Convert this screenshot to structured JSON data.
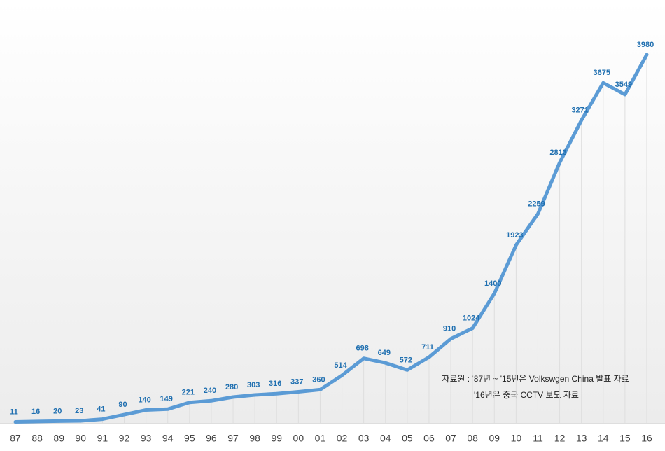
{
  "chart_data": {
    "type": "line",
    "categories": [
      "87",
      "88",
      "89",
      "90",
      "91",
      "92",
      "93",
      "94",
      "95",
      "96",
      "97",
      "98",
      "99",
      "00",
      "01",
      "02",
      "03",
      "04",
      "05",
      "06",
      "07",
      "08",
      "09",
      "10",
      "11",
      "12",
      "13",
      "14",
      "15",
      "16"
    ],
    "values": [
      11,
      16,
      20,
      23,
      41,
      90,
      140,
      149,
      221,
      240,
      280,
      303,
      316,
      337,
      360,
      514,
      698,
      649,
      572,
      711,
      910,
      1024,
      1400,
      1923,
      2259,
      2813,
      3271,
      3675,
      3549,
      3980
    ],
    "color": "#5b9bd5",
    "label_color": "#1f6fb0",
    "annotations": [
      "자료원 : '87년 ~ '15년은 Volkswgen China 발표 자료",
      "'16년은 중국 CCTV 보도 자료"
    ]
  }
}
